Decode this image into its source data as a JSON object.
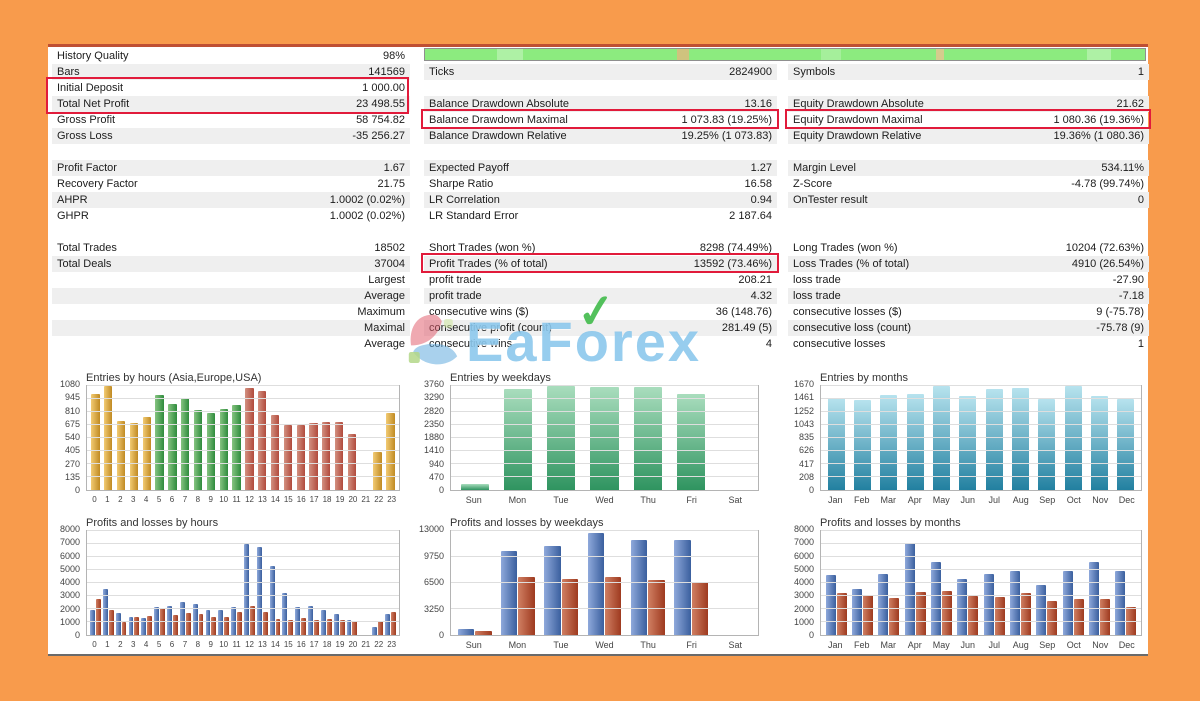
{
  "palette": {
    "frame_orange": "#f89b4c",
    "highlight_red": "#e11b3b",
    "progress_green": "#8ceb7f",
    "stripe_gray": "#efefef",
    "bar_colors": {
      "gold": [
        "#f2cb74",
        "#c08a22"
      ],
      "green": [
        "#86c481",
        "#2e8b3c"
      ],
      "brick": [
        "#d39181",
        "#b14a3c"
      ],
      "teal": [
        "#a9ddbd",
        "#2f9460"
      ],
      "steel": [
        "#b7e3ee",
        "#2280a0"
      ],
      "blue": [
        "#8fa9db",
        "#3a5f9e"
      ],
      "red": [
        "#d07f63",
        "#9e3a1f"
      ]
    }
  },
  "watermark": {
    "text": "EaForex"
  },
  "stats": {
    "columns": [
      {
        "name": "left",
        "blocks": [
          {
            "stripe": 1,
            "rows": [
              {
                "label": "History Quality",
                "value": "98%"
              },
              {
                "label": "Bars",
                "value": "141569"
              },
              {
                "label": "Initial Deposit",
                "value": "1 000.00"
              },
              {
                "label": "Total Net Profit",
                "value": "23 498.55"
              },
              {
                "label": "Gross Profit",
                "value": "58 754.82"
              },
              {
                "label": "Gross Loss",
                "value": "-35 256.27"
              }
            ]
          },
          {
            "stripe": 0,
            "rows": [
              {
                "label": "Profit Factor",
                "value": "1.67"
              },
              {
                "label": "Recovery Factor",
                "value": "21.75"
              },
              {
                "label": "AHPR",
                "value": "1.0002 (0.02%)"
              },
              {
                "label": "GHPR",
                "value": "1.0002 (0.02%)"
              }
            ]
          },
          {
            "stripe": 1,
            "rows": [
              {
                "label": "Total Trades",
                "value": "18502"
              },
              {
                "label": "Total Deals",
                "value": "37004"
              },
              {
                "label": "",
                "value": "Largest"
              },
              {
                "label": "",
                "value": "Average"
              },
              {
                "label": "",
                "value": "Maximum"
              },
              {
                "label": "",
                "value": "Maximal"
              },
              {
                "label": "",
                "value": "Average"
              }
            ]
          }
        ]
      },
      {
        "name": "middle",
        "blocks": [
          {
            "stripe": 1,
            "rows": [
              {
                "blank": true
              },
              {
                "label": "Ticks",
                "value": "2824900"
              },
              {
                "blank": true
              },
              {
                "label": "Balance Drawdown Absolute",
                "value": "13.16"
              },
              {
                "label": "Balance Drawdown Maximal",
                "value": "1 073.83 (19.25%)"
              },
              {
                "label": "Balance Drawdown Relative",
                "value": "19.25% (1 073.83)"
              }
            ]
          },
          {
            "stripe": 0,
            "rows": [
              {
                "label": "Expected Payoff",
                "value": "1.27"
              },
              {
                "label": "Sharpe Ratio",
                "value": "16.58"
              },
              {
                "label": "LR Correlation",
                "value": "0.94"
              },
              {
                "label": "LR Standard Error",
                "value": "2 187.64"
              }
            ]
          },
          {
            "stripe": 1,
            "rows": [
              {
                "label": "Short Trades (won %)",
                "value": "8298 (74.49%)"
              },
              {
                "label": "Profit Trades (% of total)",
                "value": "13592 (73.46%)"
              },
              {
                "label": "profit trade",
                "value": "208.21"
              },
              {
                "label": "profit trade",
                "value": "4.32"
              },
              {
                "label": "consecutive wins ($)",
                "value": "36 (148.76)"
              },
              {
                "label": "consecutive profit (count)",
                "value": "281.49 (5)"
              },
              {
                "label": "consecutive wins",
                "value": "4"
              }
            ]
          }
        ]
      },
      {
        "name": "right",
        "blocks": [
          {
            "stripe": 1,
            "rows": [
              {
                "blank": true
              },
              {
                "label": "Symbols",
                "value": "1"
              },
              {
                "blank": true
              },
              {
                "label": "Equity Drawdown Absolute",
                "value": "21.62"
              },
              {
                "label": "Equity Drawdown Maximal",
                "value": "1 080.36 (19.36%)"
              },
              {
                "label": "Equity Drawdown Relative",
                "value": "19.36% (1 080.36)"
              }
            ]
          },
          {
            "stripe": 0,
            "rows": [
              {
                "label": "Margin Level",
                "value": "534.11%"
              },
              {
                "label": "Z-Score",
                "value": "-4.78 (99.74%)"
              },
              {
                "label": "OnTester result",
                "value": "0"
              },
              {
                "blank": true
              }
            ]
          },
          {
            "stripe": 1,
            "rows": [
              {
                "label": "Long Trades (won %)",
                "value": "10204 (72.63%)"
              },
              {
                "label": "Loss Trades (% of total)",
                "value": "4910 (26.54%)"
              },
              {
                "label": "loss trade",
                "value": "-27.90"
              },
              {
                "label": "loss trade",
                "value": "-7.18"
              },
              {
                "label": "consecutive losses ($)",
                "value": "9 (-75.78)"
              },
              {
                "label": "consecutive loss (count)",
                "value": "-75.78 (9)"
              },
              {
                "label": "consecutive losses",
                "value": "1"
              }
            ]
          }
        ]
      }
    ]
  },
  "chart_data": [
    {
      "type": "bar",
      "title": "Entries by hours (Asia,Europe,USA)",
      "categories": [
        "0",
        "1",
        "2",
        "3",
        "4",
        "5",
        "6",
        "7",
        "8",
        "9",
        "10",
        "11",
        "12",
        "13",
        "14",
        "15",
        "16",
        "17",
        "18",
        "19",
        "20",
        "21",
        "22",
        "23"
      ],
      "values": [
        1000,
        1075,
        720,
        700,
        760,
        990,
        890,
        960,
        830,
        800,
        845,
        885,
        1060,
        1030,
        780,
        675,
        670,
        700,
        710,
        710,
        585,
        0,
        390,
        795
      ],
      "bar_colors": [
        "gold",
        "gold",
        "gold",
        "gold",
        "gold",
        "green",
        "green",
        "green",
        "green",
        "green",
        "green",
        "green",
        "brick",
        "brick",
        "brick",
        "brick",
        "brick",
        "brick",
        "brick",
        "brick",
        "brick",
        "gold",
        "gold",
        "gold"
      ],
      "yticks": [
        0,
        135,
        270,
        405,
        540,
        675,
        810,
        945,
        1080
      ],
      "ylim": [
        0,
        1080
      ],
      "grad_dir": "90deg",
      "grid": true,
      "legend": "none"
    },
    {
      "type": "bar",
      "title": "Entries by weekdays",
      "categories": [
        "Sun",
        "Mon",
        "Tue",
        "Wed",
        "Thu",
        "Fri",
        "Sat"
      ],
      "values": [
        200,
        3650,
        3760,
        3720,
        3740,
        3470,
        0
      ],
      "color": "teal",
      "yticks": [
        0,
        470,
        940,
        1410,
        1880,
        2350,
        2820,
        3290,
        3760
      ],
      "ylim": [
        0,
        3760
      ],
      "grad_dir": "180deg",
      "grid": true,
      "legend": "none"
    },
    {
      "type": "bar",
      "title": "Entries by months",
      "categories": [
        "Jan",
        "Feb",
        "Mar",
        "Apr",
        "May",
        "Jun",
        "Jul",
        "Aug",
        "Sep",
        "Oct",
        "Nov",
        "Dec"
      ],
      "values": [
        1480,
        1450,
        1530,
        1545,
        1665,
        1515,
        1620,
        1640,
        1465,
        1670,
        1510,
        1460
      ],
      "color": "steel",
      "yticks": [
        0,
        208,
        417,
        626,
        835,
        1043,
        1252,
        1461,
        1670
      ],
      "ylim": [
        0,
        1670
      ],
      "grad_dir": "180deg",
      "grid": true,
      "legend": "none"
    },
    {
      "type": "bar",
      "title": "Profits and losses by hours",
      "categories": [
        "0",
        "1",
        "2",
        "3",
        "4",
        "5",
        "6",
        "7",
        "8",
        "9",
        "10",
        "11",
        "12",
        "13",
        "14",
        "15",
        "16",
        "17",
        "18",
        "19",
        "20",
        "21",
        "22",
        "23"
      ],
      "series": [
        {
          "name": "profits",
          "color": "blue",
          "values": [
            1900,
            3550,
            1700,
            1350,
            1300,
            2150,
            2200,
            2550,
            2350,
            1900,
            1900,
            2150,
            7000,
            6750,
            5300,
            3250,
            2150,
            2250,
            1950,
            1600,
            1150,
            0,
            600,
            1650
          ]
        },
        {
          "name": "losses",
          "color": "red",
          "values": [
            2800,
            1950,
            1000,
            1350,
            1450,
            2050,
            1550,
            1700,
            1600,
            1400,
            1350,
            1800,
            2200,
            1800,
            1200,
            1150,
            1300,
            1150,
            1250,
            1150,
            1050,
            0,
            1050,
            1800
          ]
        }
      ],
      "yticks": [
        0,
        1000,
        2000,
        3000,
        4000,
        5000,
        6000,
        7000,
        8000
      ],
      "ylim": [
        0,
        8000
      ],
      "grad_dir": "90deg",
      "grid": true,
      "legend": "none"
    },
    {
      "type": "bar",
      "title": "Profits and losses by weekdays",
      "categories": [
        "Sun",
        "Mon",
        "Tue",
        "Wed",
        "Thu",
        "Fri",
        "Sat"
      ],
      "series": [
        {
          "name": "profits",
          "color": "blue",
          "values": [
            800,
            10550,
            11150,
            12700,
            11900,
            11900,
            0
          ]
        },
        {
          "name": "losses",
          "color": "red",
          "values": [
            450,
            7200,
            7050,
            7300,
            6900,
            6600,
            0
          ]
        }
      ],
      "yticks": [
        0,
        3250,
        6500,
        9750,
        13000
      ],
      "ylim": [
        0,
        13000
      ],
      "grad_dir": "90deg",
      "grid": true,
      "legend": "none"
    },
    {
      "type": "bar",
      "title": "Profits and losses by months",
      "categories": [
        "Jan",
        "Feb",
        "Mar",
        "Apr",
        "May",
        "Jun",
        "Jul",
        "Aug",
        "Sep",
        "Oct",
        "Nov",
        "Dec"
      ],
      "series": [
        {
          "name": "profits",
          "color": "blue",
          "values": [
            4600,
            3550,
            4700,
            7050,
            5600,
            4300,
            4700,
            4950,
            3850,
            4950,
            5600,
            4950
          ]
        },
        {
          "name": "losses",
          "color": "red",
          "values": [
            3200,
            3100,
            2850,
            3300,
            3400,
            3000,
            2900,
            3200,
            2600,
            2800,
            2750,
            2150
          ]
        }
      ],
      "yticks": [
        0,
        1000,
        2000,
        3000,
        4000,
        5000,
        6000,
        7000,
        8000
      ],
      "ylim": [
        0,
        8000
      ],
      "grad_dir": "90deg",
      "grid": true,
      "legend": "none"
    }
  ]
}
